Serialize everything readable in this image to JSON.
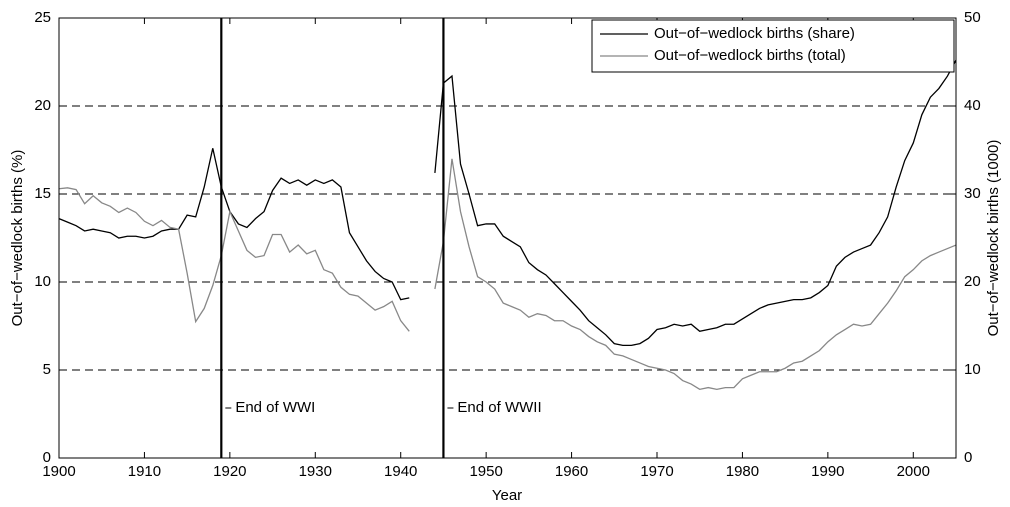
{
  "chart_data": {
    "type": "line",
    "x_label": "Year",
    "y_label": "Out−of−wedlock births (%)",
    "y2_label": "Out−of−wedlock births (1000)",
    "x": [
      1900,
      1901,
      1902,
      1903,
      1904,
      1905,
      1906,
      1907,
      1908,
      1909,
      1910,
      1911,
      1912,
      1913,
      1914,
      1915,
      1916,
      1917,
      1918,
      1919,
      1920,
      1921,
      1922,
      1923,
      1924,
      1925,
      1926,
      1927,
      1928,
      1929,
      1930,
      1931,
      1932,
      1933,
      1934,
      1935,
      1936,
      1937,
      1938,
      1939,
      1940,
      1941,
      1942,
      1943,
      1944,
      1945,
      1946,
      1947,
      1948,
      1949,
      1950,
      1951,
      1952,
      1953,
      1954,
      1955,
      1956,
      1957,
      1958,
      1959,
      1960,
      1961,
      1962,
      1963,
      1964,
      1965,
      1966,
      1967,
      1968,
      1969,
      1970,
      1971,
      1972,
      1973,
      1974,
      1975,
      1976,
      1977,
      1978,
      1979,
      1980,
      1981,
      1982,
      1983,
      1984,
      1985,
      1986,
      1987,
      1988,
      1989,
      1990,
      1991,
      1992,
      1993,
      1994,
      1995,
      1996,
      1997,
      1998,
      1999,
      2000,
      2001,
      2002,
      2003,
      2004,
      2005
    ],
    "series": [
      {
        "name": "Out−of−wedlock births (share)",
        "color": "#000000",
        "axis": "y",
        "values": [
          13.6,
          13.4,
          13.2,
          12.9,
          13.0,
          12.9,
          12.8,
          12.5,
          12.6,
          12.6,
          12.5,
          12.6,
          12.9,
          13.0,
          13.0,
          13.8,
          13.7,
          15.4,
          17.6,
          15.4,
          14.0,
          13.3,
          13.1,
          13.6,
          14.0,
          15.2,
          15.9,
          15.6,
          15.8,
          15.5,
          15.8,
          15.6,
          15.8,
          15.4,
          12.8,
          12.0,
          11.2,
          10.6,
          10.2,
          10.0,
          9.0,
          9.1,
          null,
          null,
          16.2,
          21.3,
          21.7,
          16.7,
          15.0,
          13.2,
          13.3,
          13.3,
          12.6,
          12.3,
          12.0,
          11.1,
          10.7,
          10.4,
          9.9,
          9.4,
          8.9,
          8.4,
          7.8,
          7.4,
          7.0,
          6.5,
          6.4,
          6.4,
          6.5,
          6.8,
          7.3,
          7.4,
          7.6,
          7.5,
          7.6,
          7.2,
          7.3,
          7.4,
          7.6,
          7.6,
          7.9,
          8.2,
          8.5,
          8.7,
          8.8,
          8.9,
          9.0,
          9.0,
          9.1,
          9.4,
          9.8,
          10.9,
          11.4,
          11.7,
          11.9,
          12.1,
          12.8,
          13.7,
          15.4,
          16.9,
          17.9,
          19.5,
          20.5,
          21.0,
          21.7,
          22.6
        ]
      },
      {
        "name": "Out−of−wedlock births (total)",
        "color": "#888888",
        "axis": "y2",
        "values": [
          30.6,
          30.7,
          30.5,
          28.9,
          29.8,
          29.0,
          28.6,
          27.9,
          28.4,
          27.9,
          26.9,
          26.4,
          27.0,
          26.2,
          26.0,
          21.0,
          15.5,
          17.0,
          19.6,
          23.0,
          28.0,
          25.8,
          23.6,
          22.8,
          23.0,
          25.4,
          25.4,
          23.4,
          24.2,
          23.2,
          23.6,
          21.4,
          21.0,
          19.4,
          18.6,
          18.4,
          17.6,
          16.8,
          17.2,
          17.8,
          15.6,
          14.4,
          null,
          null,
          19.2,
          24.6,
          34.0,
          28.0,
          24.0,
          20.6,
          20.0,
          19.2,
          17.6,
          17.2,
          16.8,
          16.0,
          16.4,
          16.2,
          15.6,
          15.6,
          15.0,
          14.6,
          13.8,
          13.2,
          12.8,
          11.8,
          11.6,
          11.2,
          10.8,
          10.4,
          10.2,
          10.0,
          9.6,
          8.8,
          8.4,
          7.8,
          8.0,
          7.8,
          8.0,
          8.0,
          9.0,
          9.4,
          9.8,
          9.8,
          9.8,
          10.2,
          10.8,
          11.0,
          11.6,
          12.2,
          13.2,
          14.0,
          14.6,
          15.2,
          15.0,
          15.2,
          16.4,
          17.6,
          19.0,
          20.6,
          21.4,
          22.4,
          23.0,
          23.4,
          23.8,
          24.2
        ]
      }
    ],
    "annotations": [
      {
        "x": 1919,
        "text": "End of WWI"
      },
      {
        "x": 1945,
        "text": "End of WWII"
      }
    ],
    "xlim": [
      1900,
      2005
    ],
    "xticks": [
      1900,
      1910,
      1920,
      1930,
      1940,
      1950,
      1960,
      1970,
      1980,
      1990,
      2000
    ],
    "ylim": [
      0,
      25
    ],
    "yticks": [
      0,
      5,
      10,
      15,
      20,
      25
    ],
    "y2lim": [
      0,
      50
    ],
    "y2ticks": [
      0,
      10,
      20,
      30,
      40,
      50
    ],
    "grid": true,
    "grid_style": "dashed",
    "legend": "northeast"
  }
}
